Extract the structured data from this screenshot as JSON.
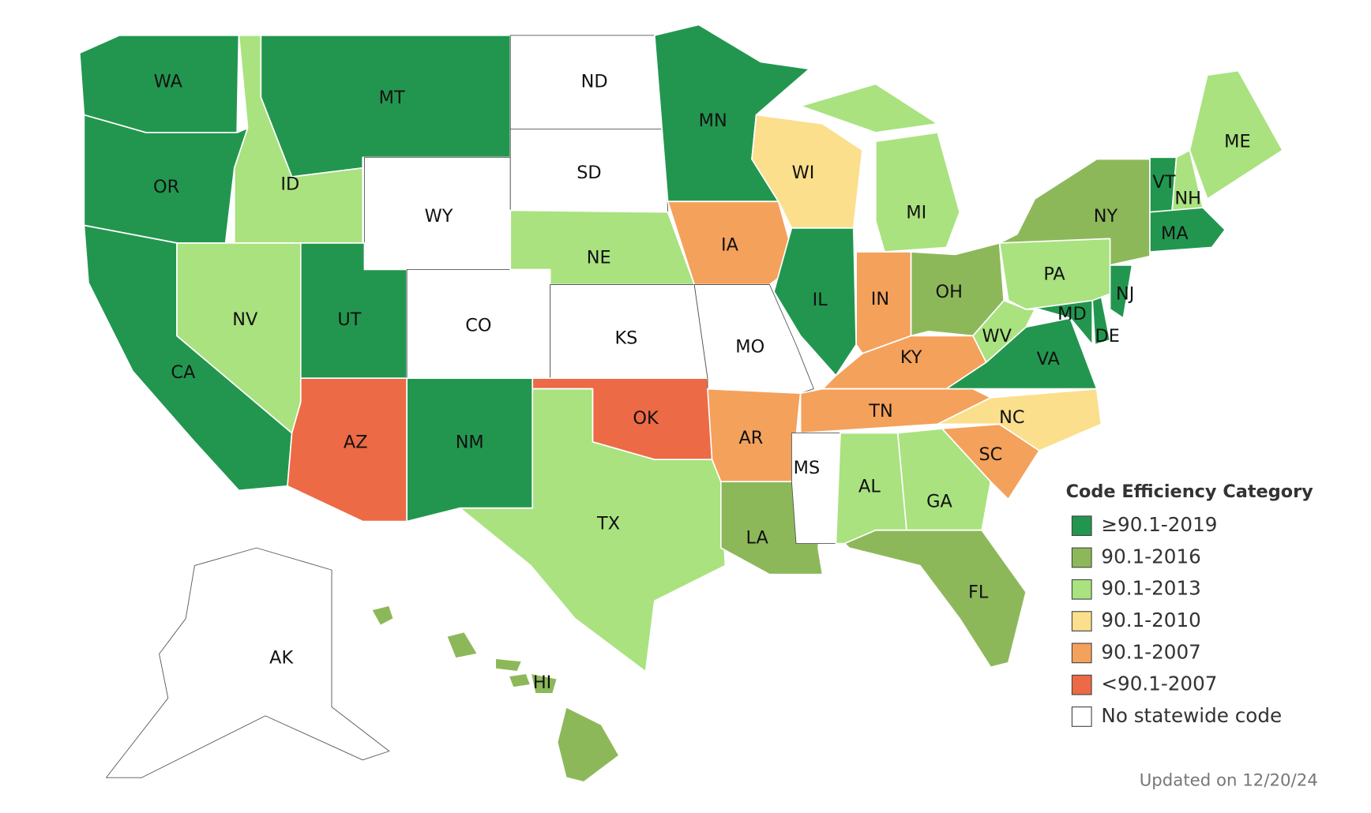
{
  "legend": {
    "title": "Code Efficiency Category",
    "entries": [
      {
        "label": "≥90.1-2019",
        "color": "#22964f"
      },
      {
        "label": "90.1-2016",
        "color": "#8db85a"
      },
      {
        "label": "90.1-2013",
        "color": "#a9e27f"
      },
      {
        "label": "90.1-2010",
        "color": "#fbdf8c"
      },
      {
        "label": "90.1-2007",
        "color": "#f4a15c"
      },
      {
        "label": "<90.1-2007",
        "color": "#ec6a45"
      },
      {
        "label": "No statewide code",
        "color": "#ffffff"
      }
    ]
  },
  "states": [
    {
      "label": "WA",
      "category": "≥90.1-2019"
    },
    {
      "label": "OR",
      "category": "≥90.1-2019"
    },
    {
      "label": "CA",
      "category": "≥90.1-2019"
    },
    {
      "label": "ID",
      "category": "90.1-2013"
    },
    {
      "label": "NV",
      "category": "90.1-2013"
    },
    {
      "label": "MT",
      "category": "≥90.1-2019"
    },
    {
      "label": "WY",
      "category": "No statewide code"
    },
    {
      "label": "UT",
      "category": "≥90.1-2019"
    },
    {
      "label": "AZ",
      "category": "<90.1-2007"
    },
    {
      "label": "CO",
      "category": "No statewide code"
    },
    {
      "label": "NM",
      "category": "≥90.1-2019"
    },
    {
      "label": "ND",
      "category": "No statewide code"
    },
    {
      "label": "SD",
      "category": "No statewide code"
    },
    {
      "label": "NE",
      "category": "90.1-2013"
    },
    {
      "label": "KS",
      "category": "No statewide code"
    },
    {
      "label": "OK",
      "category": "<90.1-2007"
    },
    {
      "label": "TX",
      "category": "90.1-2013"
    },
    {
      "label": "MN",
      "category": "≥90.1-2019"
    },
    {
      "label": "IA",
      "category": "90.1-2007"
    },
    {
      "label": "MO",
      "category": "No statewide code"
    },
    {
      "label": "AR",
      "category": "90.1-2007"
    },
    {
      "label": "LA",
      "category": "90.1-2016"
    },
    {
      "label": "WI",
      "category": "90.1-2010"
    },
    {
      "label": "IL",
      "category": "≥90.1-2019"
    },
    {
      "label": "MI",
      "category": "90.1-2013"
    },
    {
      "label": "IN",
      "category": "90.1-2007"
    },
    {
      "label": "OH",
      "category": "90.1-2016"
    },
    {
      "label": "KY",
      "category": "90.1-2007"
    },
    {
      "label": "TN",
      "category": "90.1-2007"
    },
    {
      "label": "MS",
      "category": "No statewide code"
    },
    {
      "label": "AL",
      "category": "90.1-2013"
    },
    {
      "label": "GA",
      "category": "90.1-2013"
    },
    {
      "label": "FL",
      "category": "90.1-2016"
    },
    {
      "label": "SC",
      "category": "90.1-2007"
    },
    {
      "label": "NC",
      "category": "90.1-2010"
    },
    {
      "label": "VA",
      "category": "≥90.1-2019"
    },
    {
      "label": "WV",
      "category": "90.1-2013"
    },
    {
      "label": "MD",
      "category": "≥90.1-2019"
    },
    {
      "label": "DE",
      "category": "≥90.1-2019"
    },
    {
      "label": "PA",
      "category": "90.1-2013"
    },
    {
      "label": "NJ",
      "category": "≥90.1-2019"
    },
    {
      "label": "NY",
      "category": "90.1-2016"
    },
    {
      "label": "VT",
      "category": "≥90.1-2019"
    },
    {
      "label": "NH",
      "category": "90.1-2013"
    },
    {
      "label": "MA",
      "category": "≥90.1-2019"
    },
    {
      "label": "ME",
      "category": "90.1-2013"
    },
    {
      "label": "AK",
      "category": "No statewide code"
    },
    {
      "label": "HI",
      "category": "90.1-2016"
    }
  ],
  "footnote": "Updated on 12/20/24"
}
